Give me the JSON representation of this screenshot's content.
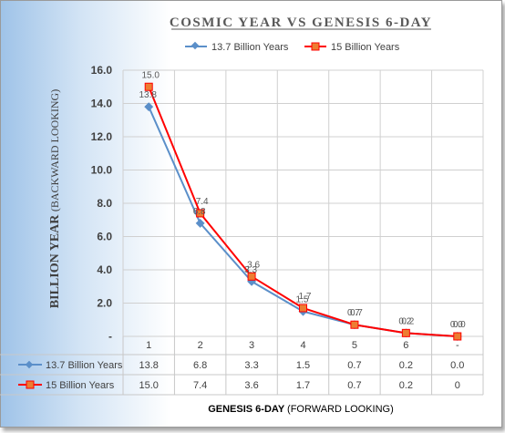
{
  "chart_data": {
    "type": "line",
    "title": "COSMIC YEAR VS GENESIS 6-DAY",
    "ylabel": "BILLION YEAR",
    "ylabel_sub": "(BACKWARD LOOKING)",
    "xlabel": "GENESIS 6-DAY",
    "xlabel_sub": "(FORWARD LOOKING)",
    "categories": [
      "1",
      "2",
      "3",
      "4",
      "5",
      "6",
      "-"
    ],
    "ylim": [
      0,
      16
    ],
    "yticks": [
      "16.0",
      "14.0",
      "12.0",
      "10.0",
      "8.0",
      "6.0",
      "4.0",
      "2.0",
      "-"
    ],
    "grid": true,
    "legend": "top",
    "series": [
      {
        "name": "13.7 Billion Years",
        "color": "#5b8fc9",
        "marker": "diamond",
        "values": [
          13.8,
          6.8,
          3.3,
          1.5,
          0.7,
          0.2,
          0.0
        ],
        "labels": [
          "13.8",
          "6.8",
          "3.3",
          "1.5",
          "0.7",
          "0.2",
          "0.0"
        ],
        "table": [
          "13.8",
          "6.8",
          "3.3",
          "1.5",
          "0.7",
          "0.2",
          "0.0"
        ]
      },
      {
        "name": "15 Billion Years",
        "color": "#ff0000",
        "fill": "#ed7d31",
        "marker": "square",
        "values": [
          15.0,
          7.4,
          3.6,
          1.7,
          0.7,
          0.2,
          0.0
        ],
        "labels": [
          "15.0",
          "7.4",
          "3.6",
          "1.7",
          "0.7",
          "0.2",
          "0.0"
        ],
        "table": [
          "15.0",
          "7.4",
          "3.6",
          "1.7",
          "0.7",
          "0.2",
          "0"
        ]
      }
    ]
  }
}
